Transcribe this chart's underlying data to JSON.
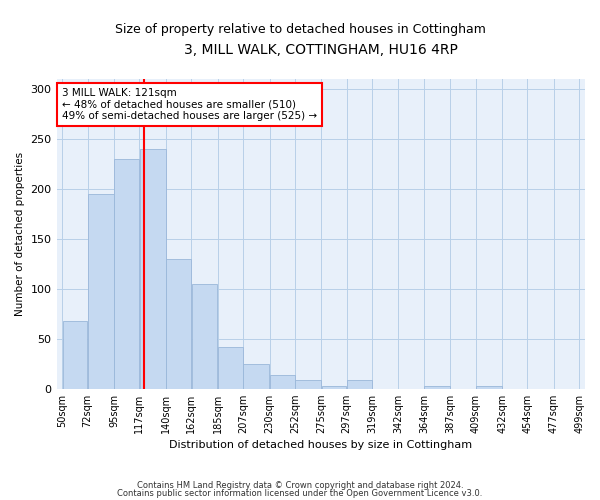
{
  "title": "3, MILL WALK, COTTINGHAM, HU16 4RP",
  "subtitle": "Size of property relative to detached houses in Cottingham",
  "xlabel": "Distribution of detached houses by size in Cottingham",
  "ylabel": "Number of detached properties",
  "categories": [
    "50sqm",
    "72sqm",
    "95sqm",
    "117sqm",
    "140sqm",
    "162sqm",
    "185sqm",
    "207sqm",
    "230sqm",
    "252sqm",
    "275sqm",
    "297sqm",
    "319sqm",
    "342sqm",
    "364sqm",
    "387sqm",
    "409sqm",
    "432sqm",
    "454sqm",
    "477sqm",
    "499sqm"
  ],
  "bar_heights": [
    68,
    195,
    230,
    240,
    130,
    105,
    42,
    25,
    14,
    9,
    3,
    9,
    0,
    0,
    3,
    0,
    3,
    0,
    0,
    0
  ],
  "bar_color": "#c5d9f1",
  "bar_edge_color": "#9ab7d9",
  "vline_color": "red",
  "annotation_text": "3 MILL WALK: 121sqm\n← 48% of detached houses are smaller (510)\n49% of semi-detached houses are larger (525) →",
  "ylim": [
    0,
    310
  ],
  "yticks": [
    0,
    50,
    100,
    150,
    200,
    250,
    300
  ],
  "grid_color": "#b8cfe8",
  "background_color": "#e8f0fa",
  "footnote1": "Contains HM Land Registry data © Crown copyright and database right 2024.",
  "footnote2": "Contains public sector information licensed under the Open Government Licence v3.0.",
  "title_fontsize": 10,
  "subtitle_fontsize": 9,
  "property_size": 121,
  "bin_edges": [
    50,
    72,
    95,
    117,
    140,
    162,
    185,
    207,
    230,
    252,
    275,
    297,
    319,
    342,
    364,
    387,
    409,
    432,
    454,
    477,
    499
  ]
}
